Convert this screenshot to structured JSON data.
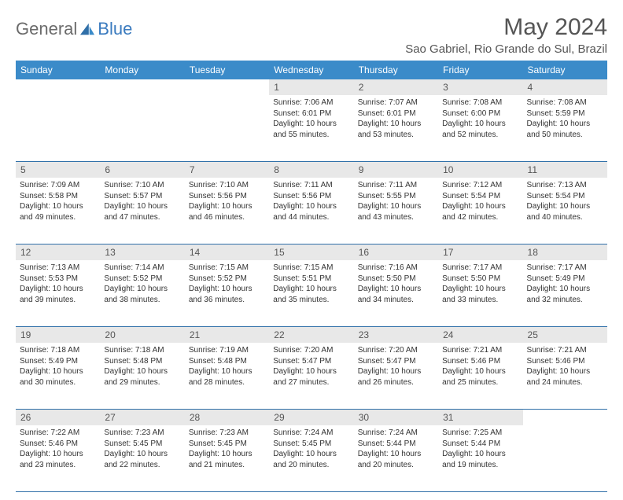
{
  "logo": {
    "text1": "General",
    "text2": "Blue"
  },
  "title": "May 2024",
  "location": "Sao Gabriel, Rio Grande do Sul, Brazil",
  "header_bg": "#3b8bc9",
  "border_color": "#2f6fa8",
  "daynum_bg": "#e8e8e8",
  "weekdays": [
    "Sunday",
    "Monday",
    "Tuesday",
    "Wednesday",
    "Thursday",
    "Friday",
    "Saturday"
  ],
  "weeks": [
    [
      {
        "n": "",
        "sr": "",
        "ss": "",
        "dl": ""
      },
      {
        "n": "",
        "sr": "",
        "ss": "",
        "dl": ""
      },
      {
        "n": "",
        "sr": "",
        "ss": "",
        "dl": ""
      },
      {
        "n": "1",
        "sr": "Sunrise: 7:06 AM",
        "ss": "Sunset: 6:01 PM",
        "dl": "Daylight: 10 hours and 55 minutes."
      },
      {
        "n": "2",
        "sr": "Sunrise: 7:07 AM",
        "ss": "Sunset: 6:01 PM",
        "dl": "Daylight: 10 hours and 53 minutes."
      },
      {
        "n": "3",
        "sr": "Sunrise: 7:08 AM",
        "ss": "Sunset: 6:00 PM",
        "dl": "Daylight: 10 hours and 52 minutes."
      },
      {
        "n": "4",
        "sr": "Sunrise: 7:08 AM",
        "ss": "Sunset: 5:59 PM",
        "dl": "Daylight: 10 hours and 50 minutes."
      }
    ],
    [
      {
        "n": "5",
        "sr": "Sunrise: 7:09 AM",
        "ss": "Sunset: 5:58 PM",
        "dl": "Daylight: 10 hours and 49 minutes."
      },
      {
        "n": "6",
        "sr": "Sunrise: 7:10 AM",
        "ss": "Sunset: 5:57 PM",
        "dl": "Daylight: 10 hours and 47 minutes."
      },
      {
        "n": "7",
        "sr": "Sunrise: 7:10 AM",
        "ss": "Sunset: 5:56 PM",
        "dl": "Daylight: 10 hours and 46 minutes."
      },
      {
        "n": "8",
        "sr": "Sunrise: 7:11 AM",
        "ss": "Sunset: 5:56 PM",
        "dl": "Daylight: 10 hours and 44 minutes."
      },
      {
        "n": "9",
        "sr": "Sunrise: 7:11 AM",
        "ss": "Sunset: 5:55 PM",
        "dl": "Daylight: 10 hours and 43 minutes."
      },
      {
        "n": "10",
        "sr": "Sunrise: 7:12 AM",
        "ss": "Sunset: 5:54 PM",
        "dl": "Daylight: 10 hours and 42 minutes."
      },
      {
        "n": "11",
        "sr": "Sunrise: 7:13 AM",
        "ss": "Sunset: 5:54 PM",
        "dl": "Daylight: 10 hours and 40 minutes."
      }
    ],
    [
      {
        "n": "12",
        "sr": "Sunrise: 7:13 AM",
        "ss": "Sunset: 5:53 PM",
        "dl": "Daylight: 10 hours and 39 minutes."
      },
      {
        "n": "13",
        "sr": "Sunrise: 7:14 AM",
        "ss": "Sunset: 5:52 PM",
        "dl": "Daylight: 10 hours and 38 minutes."
      },
      {
        "n": "14",
        "sr": "Sunrise: 7:15 AM",
        "ss": "Sunset: 5:52 PM",
        "dl": "Daylight: 10 hours and 36 minutes."
      },
      {
        "n": "15",
        "sr": "Sunrise: 7:15 AM",
        "ss": "Sunset: 5:51 PM",
        "dl": "Daylight: 10 hours and 35 minutes."
      },
      {
        "n": "16",
        "sr": "Sunrise: 7:16 AM",
        "ss": "Sunset: 5:50 PM",
        "dl": "Daylight: 10 hours and 34 minutes."
      },
      {
        "n": "17",
        "sr": "Sunrise: 7:17 AM",
        "ss": "Sunset: 5:50 PM",
        "dl": "Daylight: 10 hours and 33 minutes."
      },
      {
        "n": "18",
        "sr": "Sunrise: 7:17 AM",
        "ss": "Sunset: 5:49 PM",
        "dl": "Daylight: 10 hours and 32 minutes."
      }
    ],
    [
      {
        "n": "19",
        "sr": "Sunrise: 7:18 AM",
        "ss": "Sunset: 5:49 PM",
        "dl": "Daylight: 10 hours and 30 minutes."
      },
      {
        "n": "20",
        "sr": "Sunrise: 7:18 AM",
        "ss": "Sunset: 5:48 PM",
        "dl": "Daylight: 10 hours and 29 minutes."
      },
      {
        "n": "21",
        "sr": "Sunrise: 7:19 AM",
        "ss": "Sunset: 5:48 PM",
        "dl": "Daylight: 10 hours and 28 minutes."
      },
      {
        "n": "22",
        "sr": "Sunrise: 7:20 AM",
        "ss": "Sunset: 5:47 PM",
        "dl": "Daylight: 10 hours and 27 minutes."
      },
      {
        "n": "23",
        "sr": "Sunrise: 7:20 AM",
        "ss": "Sunset: 5:47 PM",
        "dl": "Daylight: 10 hours and 26 minutes."
      },
      {
        "n": "24",
        "sr": "Sunrise: 7:21 AM",
        "ss": "Sunset: 5:46 PM",
        "dl": "Daylight: 10 hours and 25 minutes."
      },
      {
        "n": "25",
        "sr": "Sunrise: 7:21 AM",
        "ss": "Sunset: 5:46 PM",
        "dl": "Daylight: 10 hours and 24 minutes."
      }
    ],
    [
      {
        "n": "26",
        "sr": "Sunrise: 7:22 AM",
        "ss": "Sunset: 5:46 PM",
        "dl": "Daylight: 10 hours and 23 minutes."
      },
      {
        "n": "27",
        "sr": "Sunrise: 7:23 AM",
        "ss": "Sunset: 5:45 PM",
        "dl": "Daylight: 10 hours and 22 minutes."
      },
      {
        "n": "28",
        "sr": "Sunrise: 7:23 AM",
        "ss": "Sunset: 5:45 PM",
        "dl": "Daylight: 10 hours and 21 minutes."
      },
      {
        "n": "29",
        "sr": "Sunrise: 7:24 AM",
        "ss": "Sunset: 5:45 PM",
        "dl": "Daylight: 10 hours and 20 minutes."
      },
      {
        "n": "30",
        "sr": "Sunrise: 7:24 AM",
        "ss": "Sunset: 5:44 PM",
        "dl": "Daylight: 10 hours and 20 minutes."
      },
      {
        "n": "31",
        "sr": "Sunrise: 7:25 AM",
        "ss": "Sunset: 5:44 PM",
        "dl": "Daylight: 10 hours and 19 minutes."
      },
      {
        "n": "",
        "sr": "",
        "ss": "",
        "dl": ""
      }
    ]
  ]
}
